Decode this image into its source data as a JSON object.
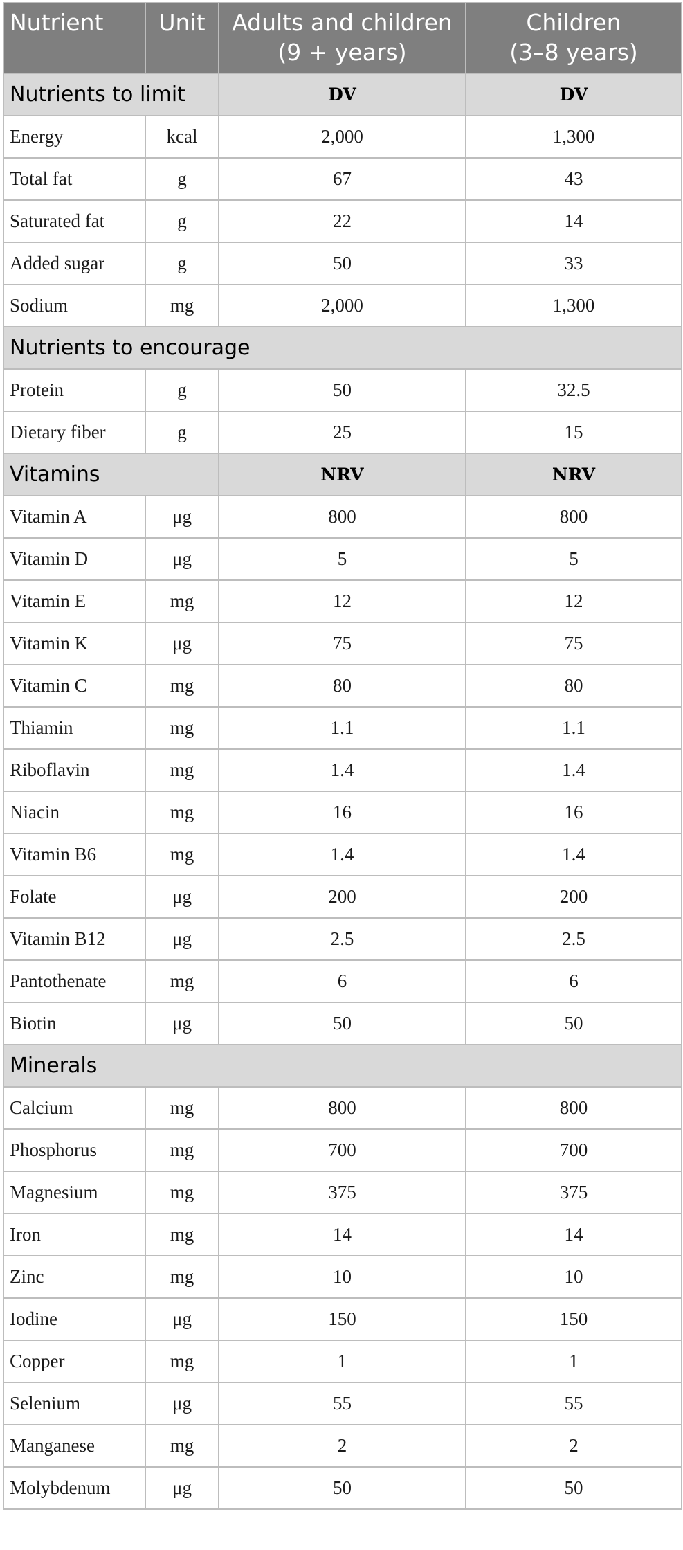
{
  "header": {
    "col_nutrient": "Nutrient",
    "col_unit": "Unit",
    "col_adults_line1": "Adults and children",
    "col_adults_line2": "(9 + years)",
    "col_children_line1": "Children",
    "col_children_line2": "(3–8 years)"
  },
  "sections": [
    {
      "title": "Nutrients to limit",
      "val_adults": "DV",
      "val_children": "DV",
      "rows": [
        {
          "name": "Energy",
          "unit": "kcal",
          "adults": "2,000",
          "children": "1,300"
        },
        {
          "name": "Total fat",
          "unit": "g",
          "adults": "67",
          "children": "43"
        },
        {
          "name": "Saturated fat",
          "unit": "g",
          "adults": "22",
          "children": "14"
        },
        {
          "name": "Added sugar",
          "unit": "g",
          "adults": "50",
          "children": "33"
        },
        {
          "name": "Sodium",
          "unit": "mg",
          "adults": "2,000",
          "children": "1,300"
        }
      ]
    },
    {
      "title": "Nutrients to encourage",
      "val_adults": "",
      "val_children": "",
      "rows": [
        {
          "name": "Protein",
          "unit": "g",
          "adults": "50",
          "children": "32.5"
        },
        {
          "name": "Dietary fiber",
          "unit": "g",
          "adults": "25",
          "children": "15"
        }
      ]
    },
    {
      "title": "Vitamins",
      "val_adults": "NRV",
      "val_children": "NRV",
      "rows": [
        {
          "name": "Vitamin A",
          "unit": "μg",
          "adults": "800",
          "children": "800"
        },
        {
          "name": "Vitamin D",
          "unit": "μg",
          "adults": "5",
          "children": "5"
        },
        {
          "name": "Vitamin E",
          "unit": "mg",
          "adults": "12",
          "children": "12"
        },
        {
          "name": "Vitamin K",
          "unit": "μg",
          "adults": "75",
          "children": "75"
        },
        {
          "name": "Vitamin C",
          "unit": "mg",
          "adults": "80",
          "children": "80"
        },
        {
          "name": "Thiamin",
          "unit": "mg",
          "adults": "1.1",
          "children": "1.1"
        },
        {
          "name": "Riboflavin",
          "unit": "mg",
          "adults": "1.4",
          "children": "1.4"
        },
        {
          "name": "Niacin",
          "unit": "mg",
          "adults": "16",
          "children": "16"
        },
        {
          "name": "Vitamin B6",
          "unit": "mg",
          "adults": "1.4",
          "children": "1.4"
        },
        {
          "name": "Folate",
          "unit": "μg",
          "adults": "200",
          "children": "200"
        },
        {
          "name": "Vitamin B12",
          "unit": "μg",
          "adults": "2.5",
          "children": "2.5"
        },
        {
          "name": "Pantothenate",
          "unit": "mg",
          "adults": "6",
          "children": "6"
        },
        {
          "name": "Biotin",
          "unit": "μg",
          "adults": "50",
          "children": "50"
        }
      ]
    },
    {
      "title": "Minerals",
      "val_adults": "",
      "val_children": "",
      "rows": [
        {
          "name": "Calcium",
          "unit": "mg",
          "adults": "800",
          "children": "800"
        },
        {
          "name": "Phosphorus",
          "unit": "mg",
          "adults": "700",
          "children": "700"
        },
        {
          "name": "Magnesium",
          "unit": "mg",
          "adults": "375",
          "children": "375"
        },
        {
          "name": "Iron",
          "unit": "mg",
          "adults": "14",
          "children": "14"
        },
        {
          "name": "Zinc",
          "unit": "mg",
          "adults": "10",
          "children": "10"
        },
        {
          "name": "Iodine",
          "unit": "μg",
          "adults": "150",
          "children": "150"
        },
        {
          "name": "Copper",
          "unit": "mg",
          "adults": "1",
          "children": "1"
        },
        {
          "name": "Selenium",
          "unit": "μg",
          "adults": "55",
          "children": "55"
        },
        {
          "name": "Manganese",
          "unit": "mg",
          "adults": "2",
          "children": "2"
        },
        {
          "name": "Molybdenum",
          "unit": "μg",
          "adults": "50",
          "children": "50"
        }
      ]
    }
  ]
}
